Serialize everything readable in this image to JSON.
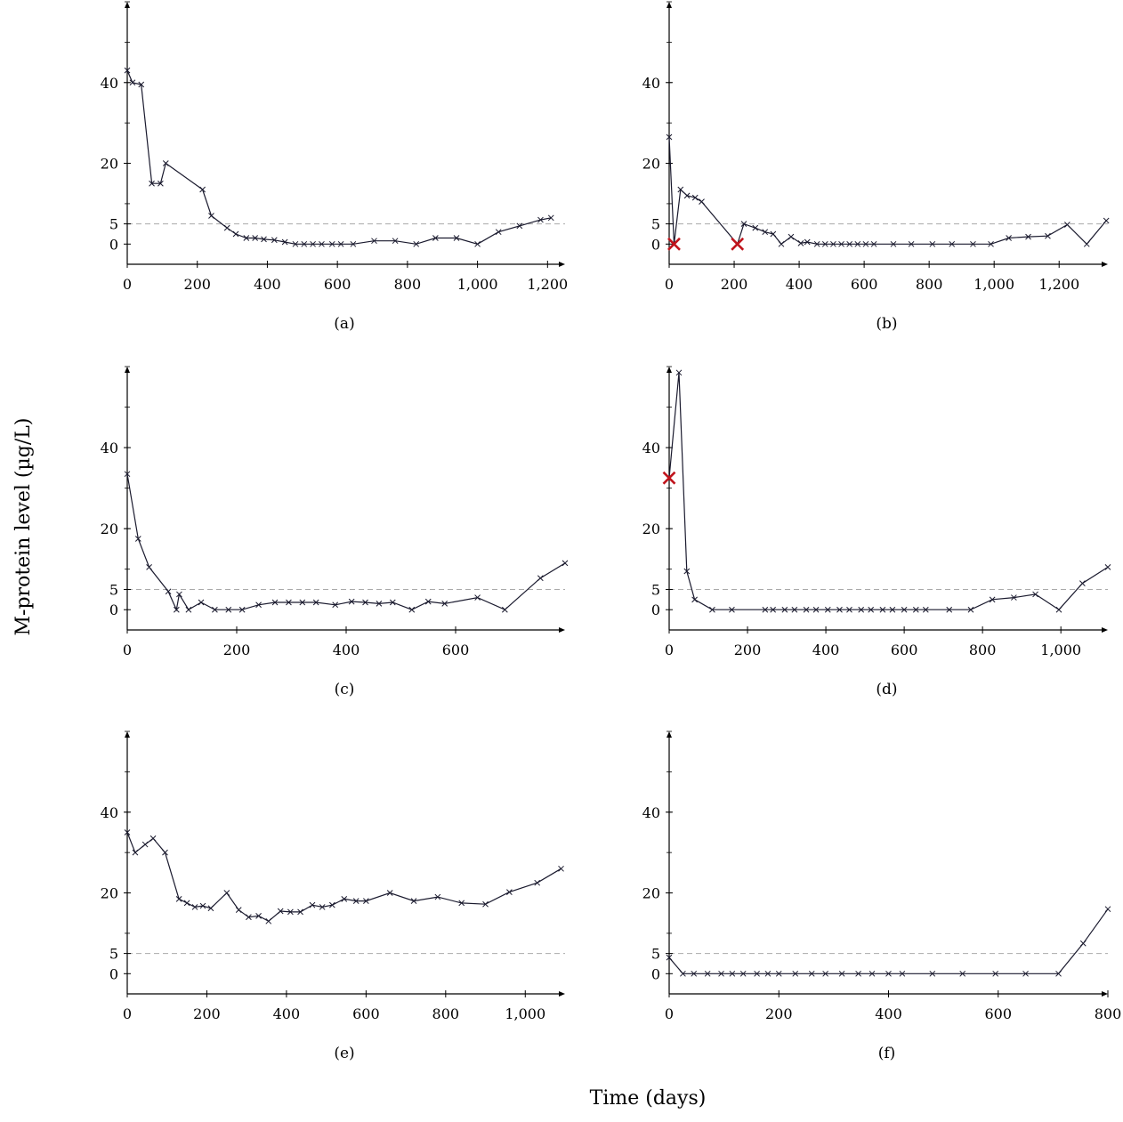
{
  "figure": {
    "ylabel": "M-protein level (µg/L)",
    "xlabel": "Time (days)",
    "threshold": 5,
    "colors": {
      "line": "#1a1a2e",
      "dashed": "#aaaaaa",
      "highlight": "#c0141c",
      "axis": "#000000"
    }
  },
  "chart_data": [
    {
      "type": "line",
      "panel_label": "(a)",
      "xlim": [
        0,
        1250
      ],
      "ylim": [
        -5,
        60
      ],
      "xticks": [
        0,
        200,
        400,
        600,
        800,
        1000,
        1200
      ],
      "xtick_labels": [
        "0",
        "200",
        "400",
        "600",
        "800",
        "1,000",
        "1,200"
      ],
      "yticks": [
        0,
        5,
        20,
        40
      ],
      "ytick_labels": [
        "0",
        "5",
        "20",
        "40"
      ],
      "x": [
        0,
        15,
        40,
        70,
        95,
        110,
        215,
        240,
        285,
        310,
        340,
        365,
        390,
        420,
        450,
        480,
        505,
        530,
        555,
        585,
        610,
        645,
        705,
        765,
        825,
        880,
        940,
        1000,
        1060,
        1120,
        1180,
        1210
      ],
      "y": [
        43,
        40,
        39.5,
        15,
        15,
        20,
        13.5,
        7,
        4,
        2.5,
        1.5,
        1.5,
        1.2,
        1,
        0.5,
        0,
        0,
        0,
        0,
        0,
        0,
        0,
        0.8,
        0.8,
        0,
        1.5,
        1.5,
        0,
        3,
        4.5,
        6,
        6.5
      ],
      "highlights": []
    },
    {
      "type": "line",
      "panel_label": "(b)",
      "xlim": [
        0,
        1350
      ],
      "ylim": [
        -5,
        60
      ],
      "xticks": [
        0,
        200,
        400,
        600,
        800,
        1000,
        1200
      ],
      "xtick_labels": [
        "0",
        "200",
        "400",
        "600",
        "800",
        "1,000",
        "1,200"
      ],
      "yticks": [
        0,
        5,
        20,
        40
      ],
      "ytick_labels": [
        "0",
        "5",
        "20",
        "40"
      ],
      "x": [
        0,
        15,
        35,
        55,
        80,
        100,
        210,
        230,
        265,
        295,
        320,
        345,
        375,
        405,
        425,
        455,
        480,
        505,
        530,
        555,
        580,
        605,
        630,
        690,
        745,
        810,
        870,
        935,
        990,
        1045,
        1105,
        1165,
        1225,
        1285,
        1345
      ],
      "y": [
        26.5,
        0,
        13.5,
        12,
        11.5,
        10.5,
        0,
        5,
        4,
        3,
        2.5,
        0,
        1.8,
        0.2,
        0.5,
        0,
        0,
        0,
        0,
        0,
        0,
        0,
        0,
        0,
        0,
        0,
        0,
        0,
        0,
        1.5,
        1.8,
        2,
        4.8,
        0,
        5.8
      ],
      "highlights": [
        {
          "x": 15,
          "y": 0
        },
        {
          "x": 210,
          "y": 0
        }
      ]
    },
    {
      "type": "line",
      "panel_label": "(c)",
      "xlim": [
        0,
        800
      ],
      "ylim": [
        -5,
        60
      ],
      "xticks": [
        0,
        200,
        400,
        600
      ],
      "xtick_labels": [
        "0",
        "200",
        "400",
        "600"
      ],
      "yticks": [
        0,
        5,
        20,
        40
      ],
      "ytick_labels": [
        "0",
        "5",
        "20",
        "40"
      ],
      "x": [
        0,
        20,
        40,
        75,
        90,
        95,
        112,
        135,
        160,
        185,
        210,
        240,
        270,
        295,
        320,
        345,
        380,
        410,
        435,
        460,
        485,
        520,
        550,
        580,
        640,
        690,
        755,
        800
      ],
      "y": [
        33.5,
        17.5,
        10.5,
        4.5,
        0,
        3.8,
        0,
        1.8,
        0,
        0,
        0,
        1.2,
        1.8,
        1.8,
        1.8,
        1.8,
        1.2,
        2,
        1.8,
        1.5,
        1.8,
        0,
        2,
        1.5,
        3,
        0,
        7.8,
        11.5
      ],
      "highlights": []
    },
    {
      "type": "line",
      "panel_label": "(d)",
      "xlim": [
        0,
        1120
      ],
      "ylim": [
        -5,
        60
      ],
      "xticks": [
        0,
        200,
        400,
        600,
        800,
        1000
      ],
      "xtick_labels": [
        "0",
        "200",
        "400",
        "600",
        "800",
        "1,000"
      ],
      "yticks": [
        0,
        5,
        20,
        40
      ],
      "ytick_labels": [
        "0",
        "5",
        "20",
        "40"
      ],
      "x": [
        0,
        25,
        45,
        65,
        110,
        160,
        245,
        265,
        295,
        320,
        350,
        375,
        405,
        435,
        460,
        490,
        515,
        545,
        570,
        600,
        630,
        655,
        715,
        770,
        825,
        880,
        935,
        995,
        1055,
        1120
      ],
      "y": [
        32.5,
        58.5,
        9.5,
        2.5,
        0,
        0,
        0,
        0,
        0,
        0,
        0,
        0,
        0,
        0,
        0,
        0,
        0,
        0,
        0,
        0,
        0,
        0,
        0,
        0,
        2.5,
        3,
        3.8,
        0,
        6.5,
        10.5
      ],
      "highlights": [
        {
          "x": 0,
          "y": 32.5
        }
      ]
    },
    {
      "type": "line",
      "panel_label": "(e)",
      "xlim": [
        0,
        1100
      ],
      "ylim": [
        -5,
        60
      ],
      "xticks": [
        0,
        200,
        400,
        600,
        800,
        1000
      ],
      "xtick_labels": [
        "0",
        "200",
        "400",
        "600",
        "800",
        "1,000"
      ],
      "yticks": [
        0,
        5,
        20,
        40
      ],
      "ytick_labels": [
        "0",
        "5",
        "20",
        "40"
      ],
      "x": [
        0,
        20,
        45,
        65,
        95,
        130,
        150,
        170,
        190,
        210,
        250,
        280,
        305,
        330,
        355,
        385,
        410,
        435,
        465,
        490,
        515,
        545,
        575,
        600,
        660,
        720,
        780,
        840,
        900,
        960,
        1030,
        1090
      ],
      "y": [
        35,
        30,
        32,
        33.5,
        30,
        18.5,
        17.5,
        16.5,
        16.8,
        16.2,
        20,
        15.8,
        14,
        14.3,
        13,
        15.5,
        15.3,
        15.3,
        17,
        16.5,
        17,
        18.5,
        18,
        18,
        20,
        18,
        19,
        17.5,
        17.2,
        20.2,
        22.5,
        26
      ],
      "highlights": []
    },
    {
      "type": "line",
      "panel_label": "(f)",
      "xlim": [
        0,
        800
      ],
      "ylim": [
        -5,
        60
      ],
      "xticks": [
        0,
        200,
        400,
        600,
        800
      ],
      "xtick_labels": [
        "0",
        "200",
        "400",
        "600",
        "800"
      ],
      "yticks": [
        0,
        5,
        20,
        40
      ],
      "ytick_labels": [
        "0",
        "5",
        "20",
        "40"
      ],
      "x": [
        0,
        25,
        45,
        70,
        95,
        115,
        135,
        160,
        180,
        200,
        230,
        260,
        285,
        315,
        345,
        370,
        400,
        425,
        480,
        535,
        595,
        650,
        710,
        755,
        800
      ],
      "y": [
        4,
        0,
        0,
        0,
        0,
        0,
        0,
        0,
        0,
        0,
        0,
        0,
        0,
        0,
        0,
        0,
        0,
        0,
        0,
        0,
        0,
        0,
        0,
        7.5,
        16
      ],
      "highlights": []
    }
  ]
}
